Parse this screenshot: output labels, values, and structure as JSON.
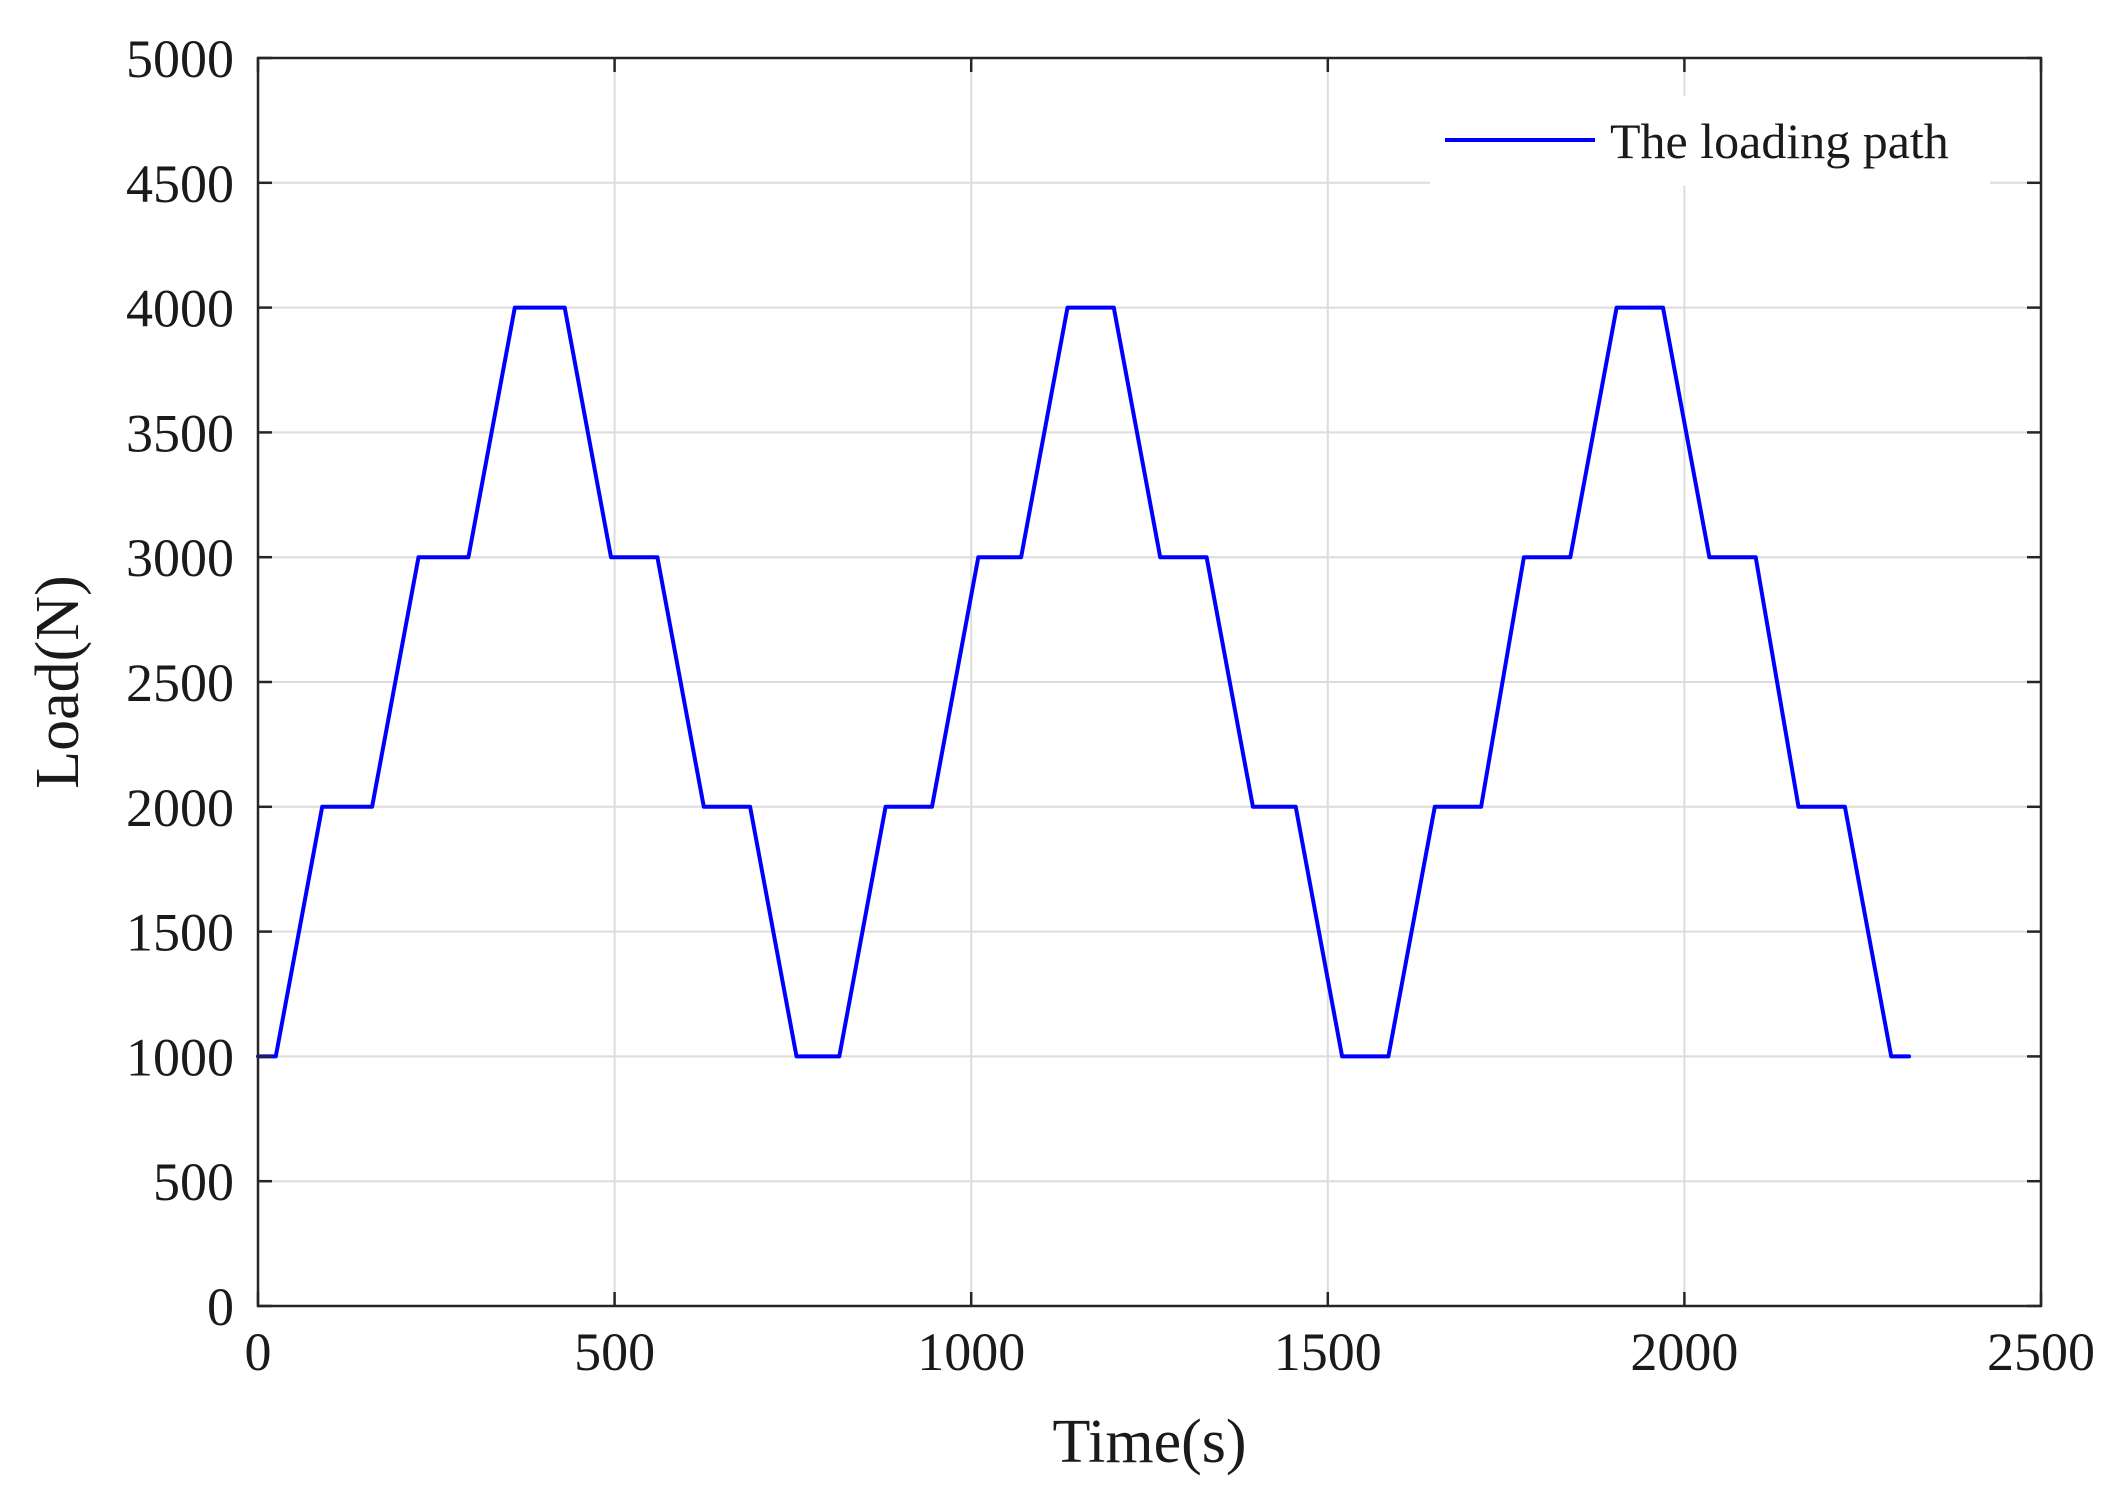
{
  "chart_data": {
    "type": "line",
    "xlabel": "Time(s)",
    "ylabel": "Load(N)",
    "xlim": [
      0,
      2500
    ],
    "ylim": [
      0,
      5000
    ],
    "xticks": [
      0,
      500,
      1000,
      1500,
      2000,
      2500
    ],
    "yticks": [
      0,
      500,
      1000,
      1500,
      2000,
      2500,
      3000,
      3500,
      4000,
      4500,
      5000
    ],
    "xtick_labels": [
      "0",
      "500",
      "1000",
      "1500",
      "2000",
      "2500"
    ],
    "ytick_labels": [
      "0",
      "500",
      "1000",
      "1500",
      "2000",
      "2500",
      "3000",
      "3500",
      "4000",
      "4500",
      "5000"
    ],
    "grid": true,
    "legend_position": "top-right",
    "series": [
      {
        "name": "The loading path",
        "color": "#0000ff",
        "x": [
          0,
          25,
          90,
          160,
          225,
          295,
          360,
          430,
          495,
          560,
          625,
          690,
          755,
          815,
          880,
          945,
          1010,
          1070,
          1135,
          1200,
          1265,
          1330,
          1395,
          1455,
          1520,
          1585,
          1650,
          1715,
          1775,
          1840,
          1905,
          1970,
          2035,
          2100,
          2160,
          2225,
          2290,
          2315
        ],
        "y": [
          1000,
          1000,
          2000,
          2000,
          3000,
          3000,
          4000,
          4000,
          3000,
          3000,
          2000,
          2000,
          1000,
          1000,
          2000,
          2000,
          3000,
          3000,
          4000,
          4000,
          3000,
          3000,
          2000,
          2000,
          1000,
          1000,
          2000,
          2000,
          3000,
          3000,
          4000,
          4000,
          3000,
          3000,
          2000,
          2000,
          1000,
          1000
        ]
      }
    ]
  }
}
